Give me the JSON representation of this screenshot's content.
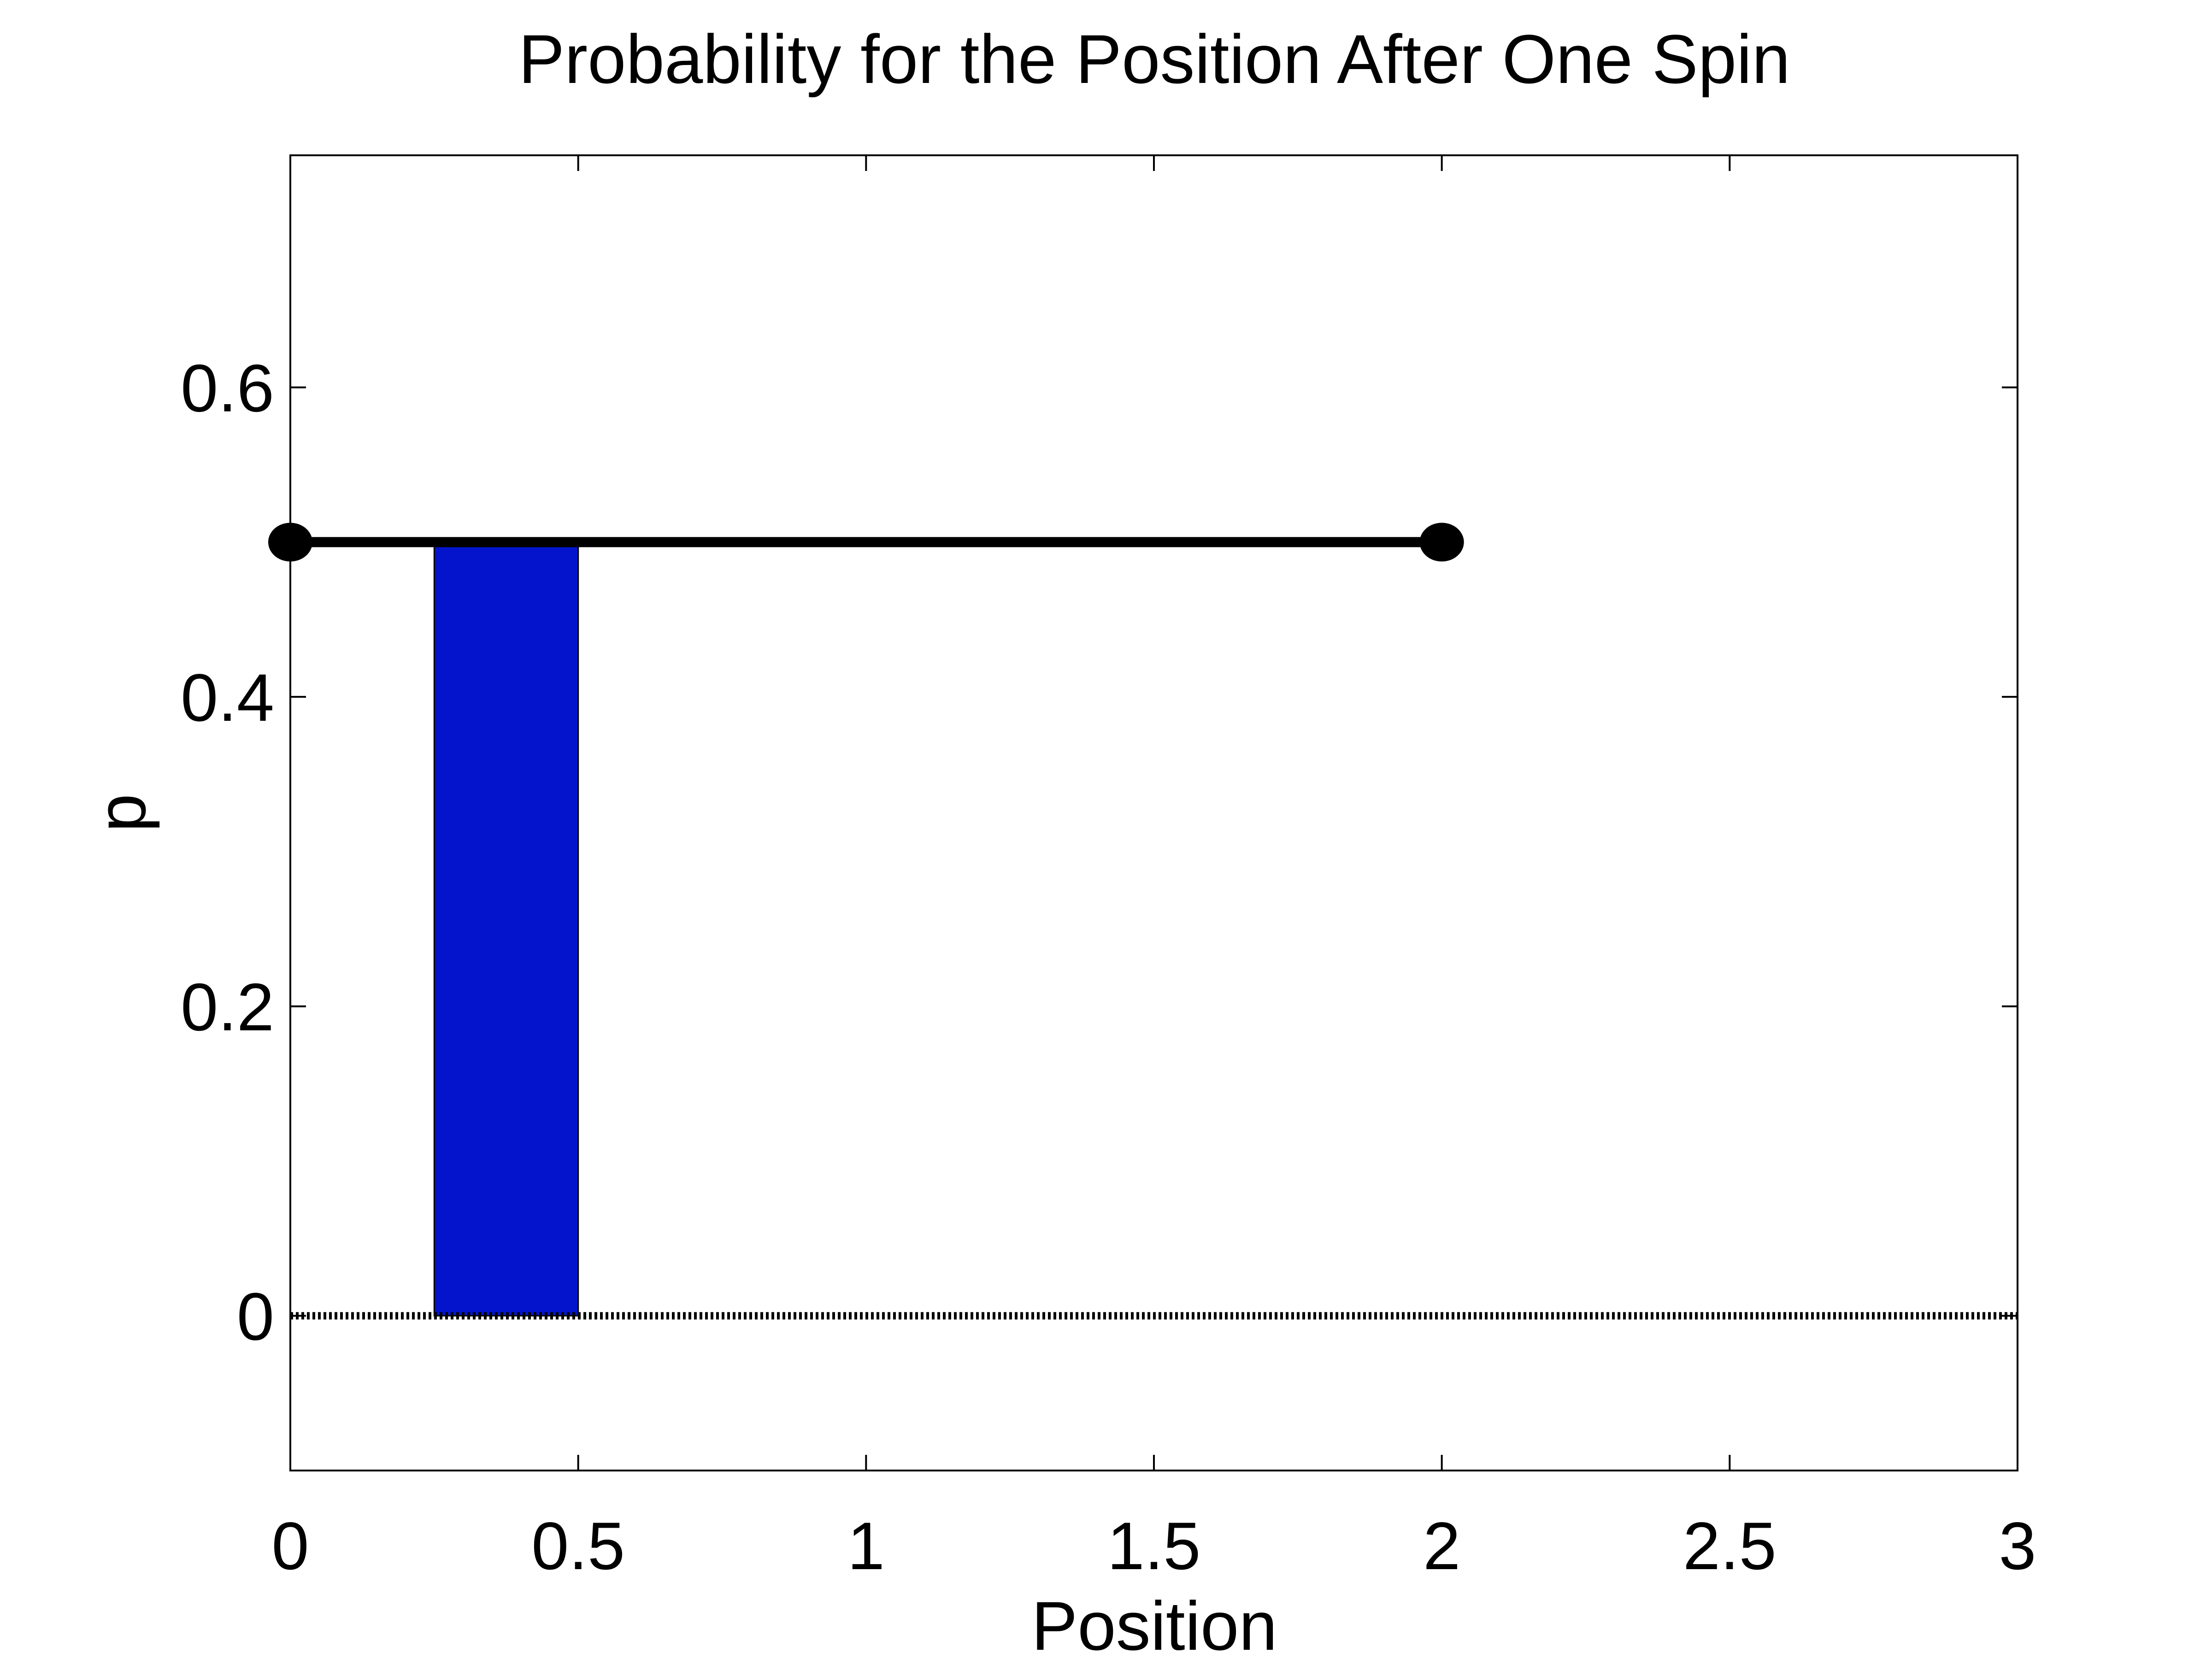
{
  "chart_data": {
    "type": "line",
    "title": "Probability for the Position After One  Spin",
    "xlabel": "Position",
    "ylabel": "p",
    "xlim": [
      0,
      3
    ],
    "ylim": [
      -0.1,
      0.75
    ],
    "xticks": [
      0,
      0.5,
      1,
      1.5,
      2,
      2.5,
      3
    ],
    "xtick_labels": [
      "0",
      "0.5",
      "1",
      "1.5",
      "2",
      "2.5",
      "3"
    ],
    "yticks": [
      0,
      0.2,
      0.4,
      0.6
    ],
    "ytick_labels": [
      "0",
      "0.2",
      "0.4",
      "0.6"
    ],
    "grid": false,
    "legend": "none",
    "series": [
      {
        "kind": "segment",
        "x": [
          0,
          2
        ],
        "y": [
          0.5,
          0.5
        ],
        "endpoints": "filled-dots",
        "color": "#000000"
      },
      {
        "kind": "rectangle",
        "x_range": [
          0.25,
          0.5
        ],
        "y_range": [
          0,
          0.5
        ],
        "color": "#0314cc"
      },
      {
        "kind": "baseline",
        "y": 0,
        "x_range": [
          0,
          3
        ],
        "style": "dotted",
        "color": "#000000"
      }
    ]
  }
}
